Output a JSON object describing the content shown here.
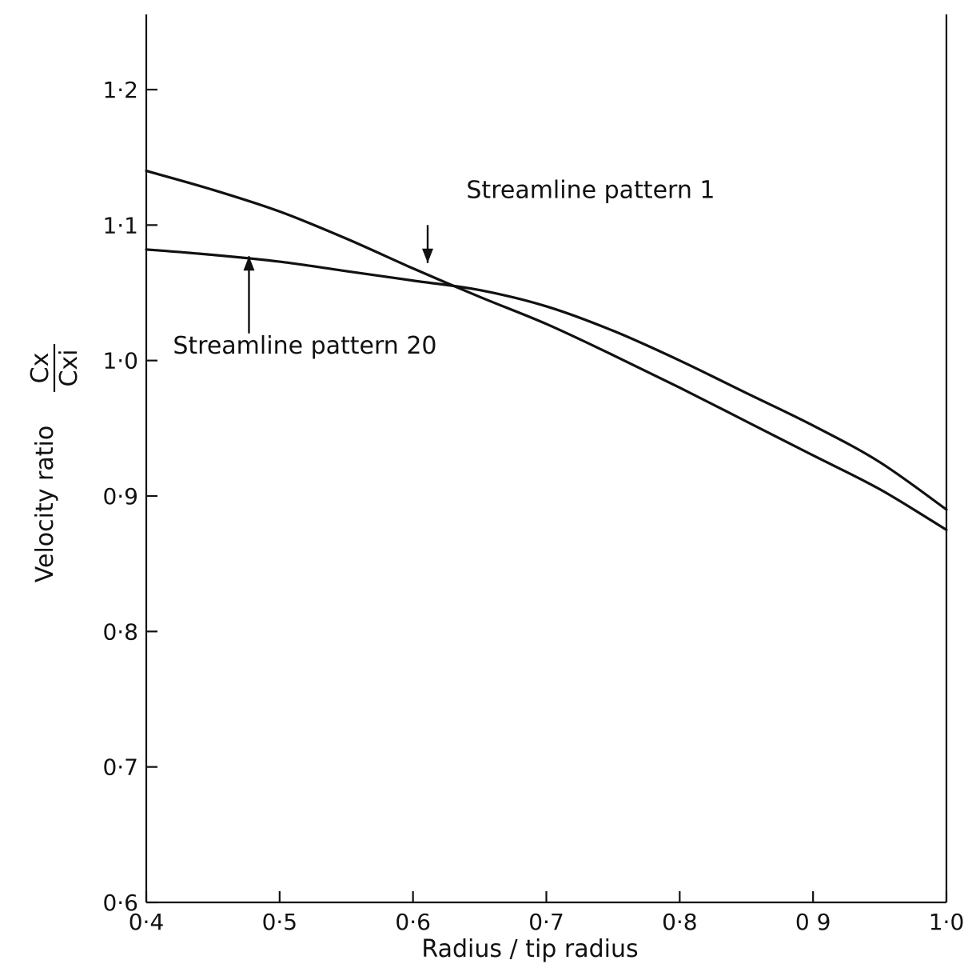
{
  "chart_data": {
    "type": "line",
    "title": "",
    "xlabel": "Radius / tip radius",
    "ylabel": "Velocity ratio",
    "ylabel_symbol": {
      "numerator": "Cx",
      "denominator": "Cxi"
    },
    "xlim": [
      0.4,
      1.0
    ],
    "ylim": [
      0.6,
      1.25
    ],
    "grid": false,
    "x_ticks": [
      {
        "value": 0.4,
        "label": "0·4"
      },
      {
        "value": 0.5,
        "label": "0·5"
      },
      {
        "value": 0.6,
        "label": "0·6"
      },
      {
        "value": 0.7,
        "label": "0·7"
      },
      {
        "value": 0.8,
        "label": "0·8"
      },
      {
        "value": 0.9,
        "label": "0 9"
      },
      {
        "value": 1.0,
        "label": "1·0"
      }
    ],
    "y_ticks": [
      {
        "value": 0.6,
        "label": "0·6"
      },
      {
        "value": 0.7,
        "label": "0·7"
      },
      {
        "value": 0.8,
        "label": "0·8"
      },
      {
        "value": 0.9,
        "label": "0·9"
      },
      {
        "value": 1.0,
        "label": "1·0"
      },
      {
        "value": 1.1,
        "label": "1·1"
      },
      {
        "value": 1.2,
        "label": "1·2"
      }
    ],
    "series": [
      {
        "name": "Streamline pattern 1",
        "x": [
          0.4,
          0.45,
          0.5,
          0.55,
          0.6,
          0.65,
          0.7,
          0.75,
          0.8,
          0.85,
          0.9,
          0.95,
          1.0
        ],
        "y": [
          1.14,
          1.126,
          1.11,
          1.09,
          1.068,
          1.047,
          1.027,
          1.004,
          0.98,
          0.955,
          0.93,
          0.905,
          0.875
        ]
      },
      {
        "name": "Streamline pattern 20",
        "x": [
          0.4,
          0.45,
          0.5,
          0.55,
          0.6,
          0.65,
          0.7,
          0.75,
          0.8,
          0.85,
          0.9,
          0.95,
          1.0
        ],
        "y": [
          1.082,
          1.078,
          1.073,
          1.066,
          1.059,
          1.052,
          1.04,
          1.022,
          1.0,
          0.976,
          0.952,
          0.925,
          0.89
        ]
      }
    ],
    "annotations": [
      {
        "text": "Streamline pattern 1",
        "series": 0,
        "text_at": [
          0.64,
          1.12
        ],
        "arrow_from": [
          0.611,
          1.1
        ],
        "arrow_to": [
          0.611,
          1.072
        ]
      },
      {
        "text": "Streamline pattern 20",
        "series": 1,
        "text_at": [
          0.42,
          1.005
        ],
        "arrow_from": [
          0.477,
          1.02
        ],
        "arrow_to": [
          0.477,
          1.077
        ]
      }
    ]
  }
}
